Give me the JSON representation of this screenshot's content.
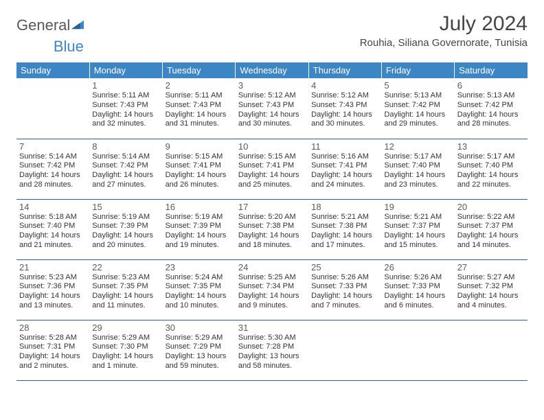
{
  "brand": {
    "part1": "General",
    "part2": "Blue"
  },
  "title": "July 2024",
  "location": "Rouhia, Siliana Governorate, Tunisia",
  "colors": {
    "header_bg": "#3d86c6",
    "header_text": "#ffffff",
    "border": "#2f5d91",
    "brand_gray": "#58595b",
    "brand_blue": "#3d86c6",
    "body_text": "#333333"
  },
  "weekdays": [
    "Sunday",
    "Monday",
    "Tuesday",
    "Wednesday",
    "Thursday",
    "Friday",
    "Saturday"
  ],
  "weeks": [
    [
      {
        "day": "",
        "sunrise": "",
        "sunset": "",
        "daylight": ""
      },
      {
        "day": "1",
        "sunrise": "Sunrise: 5:11 AM",
        "sunset": "Sunset: 7:43 PM",
        "daylight": "Daylight: 14 hours and 32 minutes."
      },
      {
        "day": "2",
        "sunrise": "Sunrise: 5:11 AM",
        "sunset": "Sunset: 7:43 PM",
        "daylight": "Daylight: 14 hours and 31 minutes."
      },
      {
        "day": "3",
        "sunrise": "Sunrise: 5:12 AM",
        "sunset": "Sunset: 7:43 PM",
        "daylight": "Daylight: 14 hours and 30 minutes."
      },
      {
        "day": "4",
        "sunrise": "Sunrise: 5:12 AM",
        "sunset": "Sunset: 7:43 PM",
        "daylight": "Daylight: 14 hours and 30 minutes."
      },
      {
        "day": "5",
        "sunrise": "Sunrise: 5:13 AM",
        "sunset": "Sunset: 7:42 PM",
        "daylight": "Daylight: 14 hours and 29 minutes."
      },
      {
        "day": "6",
        "sunrise": "Sunrise: 5:13 AM",
        "sunset": "Sunset: 7:42 PM",
        "daylight": "Daylight: 14 hours and 28 minutes."
      }
    ],
    [
      {
        "day": "7",
        "sunrise": "Sunrise: 5:14 AM",
        "sunset": "Sunset: 7:42 PM",
        "daylight": "Daylight: 14 hours and 28 minutes."
      },
      {
        "day": "8",
        "sunrise": "Sunrise: 5:14 AM",
        "sunset": "Sunset: 7:42 PM",
        "daylight": "Daylight: 14 hours and 27 minutes."
      },
      {
        "day": "9",
        "sunrise": "Sunrise: 5:15 AM",
        "sunset": "Sunset: 7:41 PM",
        "daylight": "Daylight: 14 hours and 26 minutes."
      },
      {
        "day": "10",
        "sunrise": "Sunrise: 5:15 AM",
        "sunset": "Sunset: 7:41 PM",
        "daylight": "Daylight: 14 hours and 25 minutes."
      },
      {
        "day": "11",
        "sunrise": "Sunrise: 5:16 AM",
        "sunset": "Sunset: 7:41 PM",
        "daylight": "Daylight: 14 hours and 24 minutes."
      },
      {
        "day": "12",
        "sunrise": "Sunrise: 5:17 AM",
        "sunset": "Sunset: 7:40 PM",
        "daylight": "Daylight: 14 hours and 23 minutes."
      },
      {
        "day": "13",
        "sunrise": "Sunrise: 5:17 AM",
        "sunset": "Sunset: 7:40 PM",
        "daylight": "Daylight: 14 hours and 22 minutes."
      }
    ],
    [
      {
        "day": "14",
        "sunrise": "Sunrise: 5:18 AM",
        "sunset": "Sunset: 7:40 PM",
        "daylight": "Daylight: 14 hours and 21 minutes."
      },
      {
        "day": "15",
        "sunrise": "Sunrise: 5:19 AM",
        "sunset": "Sunset: 7:39 PM",
        "daylight": "Daylight: 14 hours and 20 minutes."
      },
      {
        "day": "16",
        "sunrise": "Sunrise: 5:19 AM",
        "sunset": "Sunset: 7:39 PM",
        "daylight": "Daylight: 14 hours and 19 minutes."
      },
      {
        "day": "17",
        "sunrise": "Sunrise: 5:20 AM",
        "sunset": "Sunset: 7:38 PM",
        "daylight": "Daylight: 14 hours and 18 minutes."
      },
      {
        "day": "18",
        "sunrise": "Sunrise: 5:21 AM",
        "sunset": "Sunset: 7:38 PM",
        "daylight": "Daylight: 14 hours and 17 minutes."
      },
      {
        "day": "19",
        "sunrise": "Sunrise: 5:21 AM",
        "sunset": "Sunset: 7:37 PM",
        "daylight": "Daylight: 14 hours and 15 minutes."
      },
      {
        "day": "20",
        "sunrise": "Sunrise: 5:22 AM",
        "sunset": "Sunset: 7:37 PM",
        "daylight": "Daylight: 14 hours and 14 minutes."
      }
    ],
    [
      {
        "day": "21",
        "sunrise": "Sunrise: 5:23 AM",
        "sunset": "Sunset: 7:36 PM",
        "daylight": "Daylight: 14 hours and 13 minutes."
      },
      {
        "day": "22",
        "sunrise": "Sunrise: 5:23 AM",
        "sunset": "Sunset: 7:35 PM",
        "daylight": "Daylight: 14 hours and 11 minutes."
      },
      {
        "day": "23",
        "sunrise": "Sunrise: 5:24 AM",
        "sunset": "Sunset: 7:35 PM",
        "daylight": "Daylight: 14 hours and 10 minutes."
      },
      {
        "day": "24",
        "sunrise": "Sunrise: 5:25 AM",
        "sunset": "Sunset: 7:34 PM",
        "daylight": "Daylight: 14 hours and 9 minutes."
      },
      {
        "day": "25",
        "sunrise": "Sunrise: 5:26 AM",
        "sunset": "Sunset: 7:33 PM",
        "daylight": "Daylight: 14 hours and 7 minutes."
      },
      {
        "day": "26",
        "sunrise": "Sunrise: 5:26 AM",
        "sunset": "Sunset: 7:33 PM",
        "daylight": "Daylight: 14 hours and 6 minutes."
      },
      {
        "day": "27",
        "sunrise": "Sunrise: 5:27 AM",
        "sunset": "Sunset: 7:32 PM",
        "daylight": "Daylight: 14 hours and 4 minutes."
      }
    ],
    [
      {
        "day": "28",
        "sunrise": "Sunrise: 5:28 AM",
        "sunset": "Sunset: 7:31 PM",
        "daylight": "Daylight: 14 hours and 2 minutes."
      },
      {
        "day": "29",
        "sunrise": "Sunrise: 5:29 AM",
        "sunset": "Sunset: 7:30 PM",
        "daylight": "Daylight: 14 hours and 1 minute."
      },
      {
        "day": "30",
        "sunrise": "Sunrise: 5:29 AM",
        "sunset": "Sunset: 7:29 PM",
        "daylight": "Daylight: 13 hours and 59 minutes."
      },
      {
        "day": "31",
        "sunrise": "Sunrise: 5:30 AM",
        "sunset": "Sunset: 7:28 PM",
        "daylight": "Daylight: 13 hours and 58 minutes."
      },
      {
        "day": "",
        "sunrise": "",
        "sunset": "",
        "daylight": ""
      },
      {
        "day": "",
        "sunrise": "",
        "sunset": "",
        "daylight": ""
      },
      {
        "day": "",
        "sunrise": "",
        "sunset": "",
        "daylight": ""
      }
    ]
  ]
}
